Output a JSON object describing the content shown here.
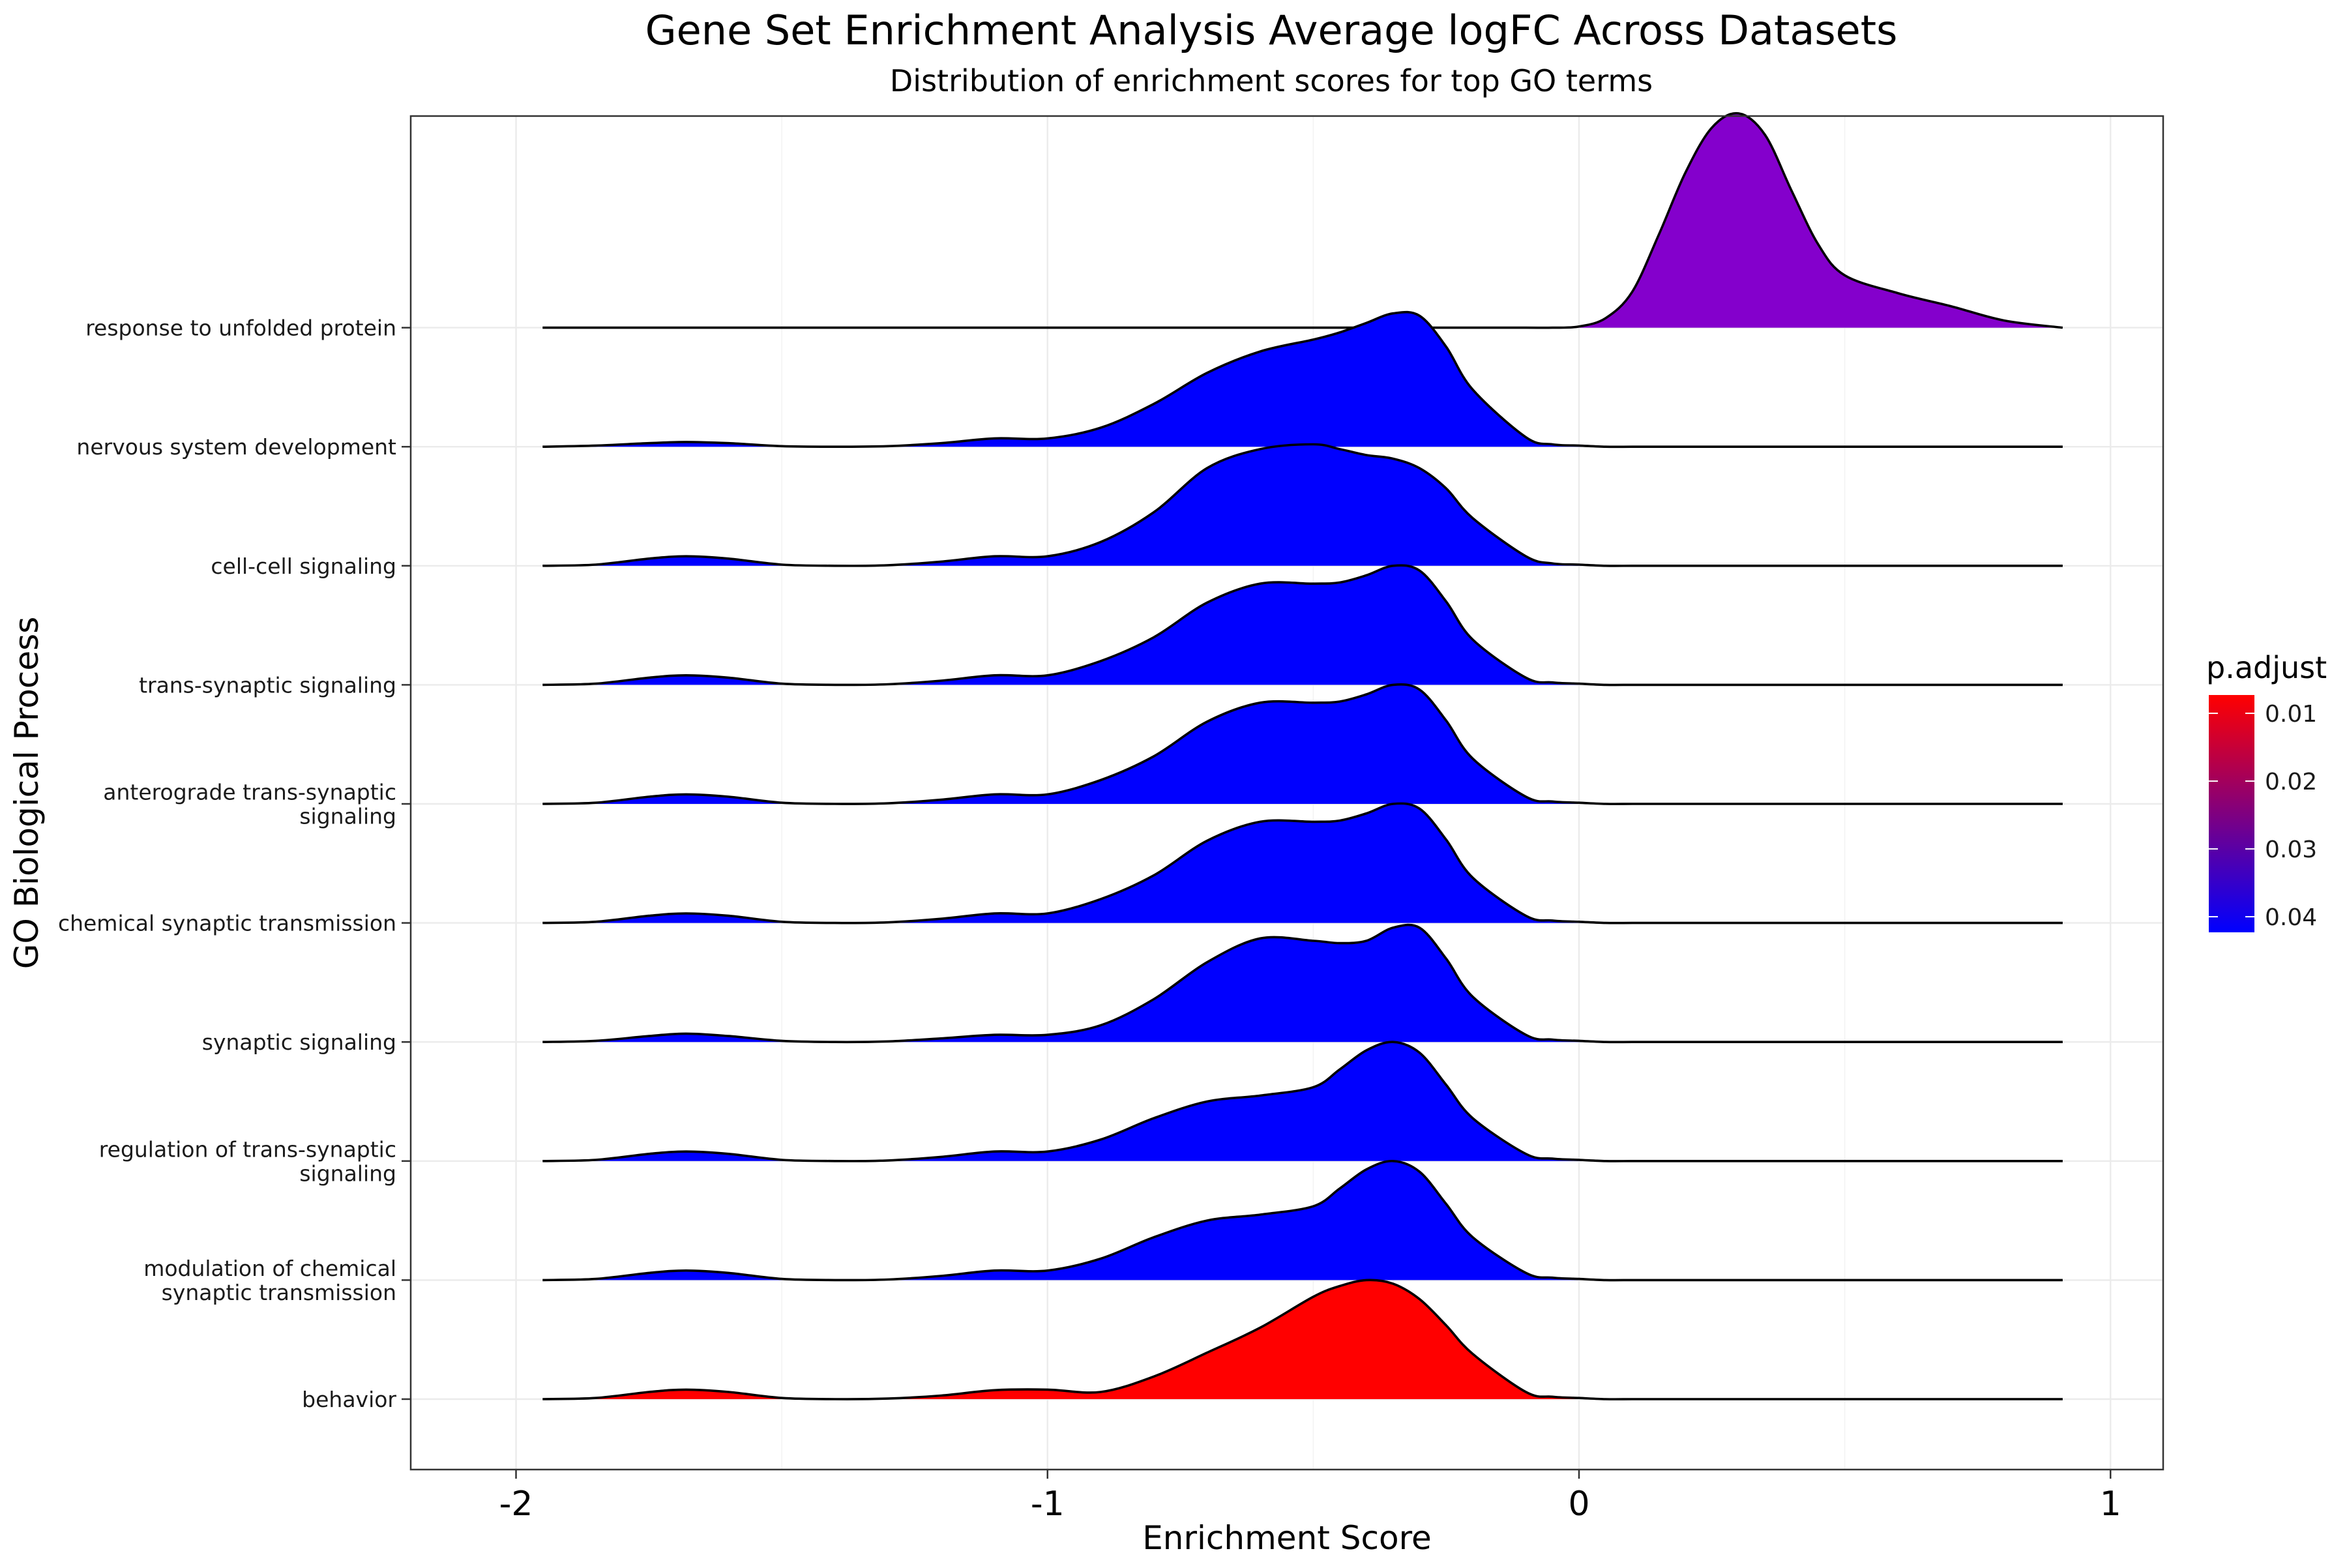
{
  "chart_data": {
    "type": "ridgeline",
    "title": "Gene Set Enrichment Analysis Average logFC Across Datasets",
    "subtitle": "Distribution of enrichment scores for top GO terms",
    "xlabel": "Enrichment Score",
    "ylabel": "GO Biological Process",
    "xlim": [
      -2.1,
      1.05
    ],
    "x_ticks": [
      -2,
      -1,
      0,
      1
    ],
    "x_tick_labels": [
      "-2",
      "-1",
      "0",
      "1"
    ],
    "grid": true,
    "legend": {
      "title": "p.adjust",
      "placement": "right",
      "range": [
        0.0073,
        0.0423
      ],
      "ticks": [
        0.01,
        0.02,
        0.03,
        0.04
      ],
      "tick_labels": [
        "0.01",
        "0.02",
        "0.03",
        "0.04"
      ],
      "low_color": "#ff0000",
      "high_color": "#0000ff"
    },
    "outline_color": "#000000",
    "density_x": [
      -1.95,
      -1.85,
      -1.75,
      -1.68,
      -1.6,
      -1.5,
      -1.4,
      -1.3,
      -1.2,
      -1.1,
      -1.0,
      -0.9,
      -0.8,
      -0.7,
      -0.6,
      -0.5,
      -0.45,
      -0.4,
      -0.35,
      -0.3,
      -0.25,
      -0.2,
      -0.1,
      -0.05,
      0.0,
      0.05,
      0.1,
      0.15,
      0.2,
      0.25,
      0.3,
      0.35,
      0.4,
      0.45,
      0.5,
      0.6,
      0.7,
      0.8,
      0.91
    ],
    "series": [
      {
        "name": "behavior",
        "fill": "#ff0000",
        "p_adjust": 0.0073,
        "density": [
          0,
          0.01,
          0.06,
          0.08,
          0.06,
          0.01,
          0,
          0.005,
          0.03,
          0.075,
          0.08,
          0.06,
          0.19,
          0.39,
          0.6,
          0.86,
          0.95,
          1.0,
          0.97,
          0.84,
          0.62,
          0.38,
          0.06,
          0.02,
          0.01,
          0,
          0,
          0,
          0,
          0,
          0,
          0,
          0,
          0,
          0,
          0,
          0,
          0,
          0
        ]
      },
      {
        "name": "modulation of chemical\nsynaptic transmission",
        "fill": "#0000ff",
        "p_adjust": 0.0423,
        "density": [
          0,
          0.01,
          0.06,
          0.08,
          0.06,
          0.01,
          0,
          0.005,
          0.035,
          0.08,
          0.08,
          0.18,
          0.36,
          0.5,
          0.55,
          0.62,
          0.77,
          0.93,
          1.0,
          0.91,
          0.64,
          0.36,
          0.06,
          0.02,
          0.01,
          0,
          0,
          0,
          0,
          0,
          0,
          0,
          0,
          0,
          0,
          0,
          0,
          0,
          0
        ]
      },
      {
        "name": "regulation of trans-synaptic\nsignaling",
        "fill": "#0000ff",
        "p_adjust": 0.0423,
        "density": [
          0,
          0.01,
          0.06,
          0.08,
          0.06,
          0.01,
          0,
          0.005,
          0.035,
          0.08,
          0.08,
          0.18,
          0.36,
          0.5,
          0.55,
          0.62,
          0.77,
          0.93,
          1.0,
          0.91,
          0.64,
          0.36,
          0.06,
          0.02,
          0.01,
          0,
          0,
          0,
          0,
          0,
          0,
          0,
          0,
          0,
          0,
          0,
          0,
          0,
          0
        ]
      },
      {
        "name": "synaptic signaling",
        "fill": "#0000ff",
        "p_adjust": 0.0423,
        "density": [
          0,
          0.01,
          0.05,
          0.07,
          0.05,
          0.01,
          0,
          0.005,
          0.03,
          0.06,
          0.06,
          0.14,
          0.36,
          0.67,
          0.87,
          0.85,
          0.83,
          0.85,
          0.96,
          0.96,
          0.7,
          0.38,
          0.06,
          0.02,
          0.01,
          0,
          0,
          0,
          0,
          0,
          0,
          0,
          0,
          0,
          0,
          0,
          0,
          0,
          0
        ]
      },
      {
        "name": "chemical synaptic transmission",
        "fill": "#0000ff",
        "p_adjust": 0.0423,
        "density": [
          0,
          0.01,
          0.06,
          0.08,
          0.06,
          0.01,
          0,
          0.005,
          0.035,
          0.08,
          0.08,
          0.2,
          0.4,
          0.69,
          0.85,
          0.85,
          0.86,
          0.92,
          1.0,
          0.96,
          0.7,
          0.38,
          0.06,
          0.02,
          0.01,
          0,
          0,
          0,
          0,
          0,
          0,
          0,
          0,
          0,
          0,
          0,
          0,
          0,
          0
        ]
      },
      {
        "name": "anterograde trans-synaptic\nsignaling",
        "fill": "#0000ff",
        "p_adjust": 0.0423,
        "density": [
          0,
          0.01,
          0.06,
          0.08,
          0.06,
          0.01,
          0,
          0.005,
          0.035,
          0.08,
          0.08,
          0.2,
          0.4,
          0.69,
          0.85,
          0.85,
          0.86,
          0.92,
          1.0,
          0.96,
          0.7,
          0.38,
          0.06,
          0.02,
          0.01,
          0,
          0,
          0,
          0,
          0,
          0,
          0,
          0,
          0,
          0,
          0,
          0,
          0,
          0
        ]
      },
      {
        "name": "trans-synaptic signaling",
        "fill": "#0000ff",
        "p_adjust": 0.0423,
        "density": [
          0,
          0.01,
          0.06,
          0.08,
          0.06,
          0.01,
          0,
          0.005,
          0.035,
          0.08,
          0.08,
          0.2,
          0.4,
          0.69,
          0.85,
          0.85,
          0.86,
          0.92,
          1.0,
          0.96,
          0.7,
          0.38,
          0.06,
          0.02,
          0.01,
          0,
          0,
          0,
          0,
          0,
          0,
          0,
          0,
          0,
          0,
          0,
          0,
          0,
          0
        ]
      },
      {
        "name": "cell-cell signaling",
        "fill": "#0000ff",
        "p_adjust": 0.0423,
        "density": [
          0,
          0.01,
          0.06,
          0.08,
          0.06,
          0.01,
          0,
          0.005,
          0.035,
          0.08,
          0.08,
          0.2,
          0.45,
          0.82,
          0.98,
          1.02,
          0.98,
          0.93,
          0.9,
          0.82,
          0.65,
          0.4,
          0.08,
          0.02,
          0.01,
          0,
          0,
          0,
          0,
          0,
          0,
          0,
          0,
          0,
          0,
          0,
          0,
          0,
          0
        ]
      },
      {
        "name": "nervous system development",
        "fill": "#0000ff",
        "p_adjust": 0.0423,
        "density": [
          0,
          0.01,
          0.03,
          0.04,
          0.03,
          0.005,
          0,
          0.005,
          0.03,
          0.07,
          0.07,
          0.16,
          0.36,
          0.62,
          0.8,
          0.9,
          0.96,
          1.04,
          1.12,
          1.1,
          0.84,
          0.48,
          0.08,
          0.02,
          0.01,
          0,
          0,
          0,
          0,
          0,
          0,
          0,
          0,
          0,
          0,
          0,
          0,
          0,
          0
        ]
      },
      {
        "name": "response to unfolded protein",
        "fill": "#8400cc",
        "p_adjust": 0.0257,
        "density": [
          0,
          0,
          0,
          0,
          0,
          0,
          0,
          0,
          0,
          0,
          0,
          0,
          0,
          0,
          0,
          0,
          0,
          0,
          0,
          0,
          0,
          0,
          0,
          0,
          0.01,
          0.08,
          0.3,
          0.78,
          1.3,
          1.68,
          1.8,
          1.62,
          1.15,
          0.7,
          0.44,
          0.29,
          0.18,
          0.06,
          0.0
        ]
      }
    ]
  }
}
